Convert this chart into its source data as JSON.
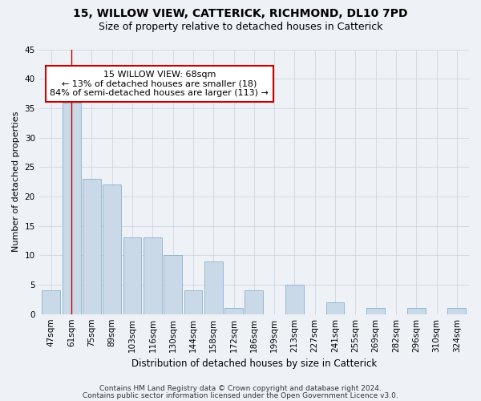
{
  "title1": "15, WILLOW VIEW, CATTERICK, RICHMOND, DL10 7PD",
  "title2": "Size of property relative to detached houses in Catterick",
  "xlabel": "Distribution of detached houses by size in Catterick",
  "ylabel": "Number of detached properties",
  "categories": [
    "47sqm",
    "61sqm",
    "75sqm",
    "89sqm",
    "103sqm",
    "116sqm",
    "130sqm",
    "144sqm",
    "158sqm",
    "172sqm",
    "186sqm",
    "199sqm",
    "213sqm",
    "227sqm",
    "241sqm",
    "255sqm",
    "269sqm",
    "282sqm",
    "296sqm",
    "310sqm",
    "324sqm"
  ],
  "values": [
    4,
    36,
    23,
    22,
    13,
    13,
    10,
    4,
    9,
    1,
    4,
    0,
    5,
    0,
    2,
    0,
    1,
    0,
    1,
    0,
    1
  ],
  "bar_color": "#c9d9e8",
  "bar_edge_color": "#8ab0cc",
  "vline_x": 1,
  "vline_color": "#cc0000",
  "annotation_line1": "15 WILLOW VIEW: 68sqm",
  "annotation_line2": "← 13% of detached houses are smaller (18)",
  "annotation_line3": "84% of semi-detached houses are larger (113) →",
  "annotation_box_facecolor": "#ffffff",
  "annotation_box_edgecolor": "#cc0000",
  "ylim": [
    0,
    45
  ],
  "yticks": [
    0,
    5,
    10,
    15,
    20,
    25,
    30,
    35,
    40,
    45
  ],
  "background_color": "#eef2f7",
  "grid_color": "#c8d0da",
  "title1_fontsize": 10,
  "title2_fontsize": 9,
  "xlabel_fontsize": 8.5,
  "ylabel_fontsize": 8,
  "tick_fontsize": 7.5,
  "annotation_fontsize": 8,
  "footer_fontsize": 6.5,
  "footer1": "Contains HM Land Registry data © Crown copyright and database right 2024.",
  "footer2": "Contains public sector information licensed under the Open Government Licence v3.0."
}
